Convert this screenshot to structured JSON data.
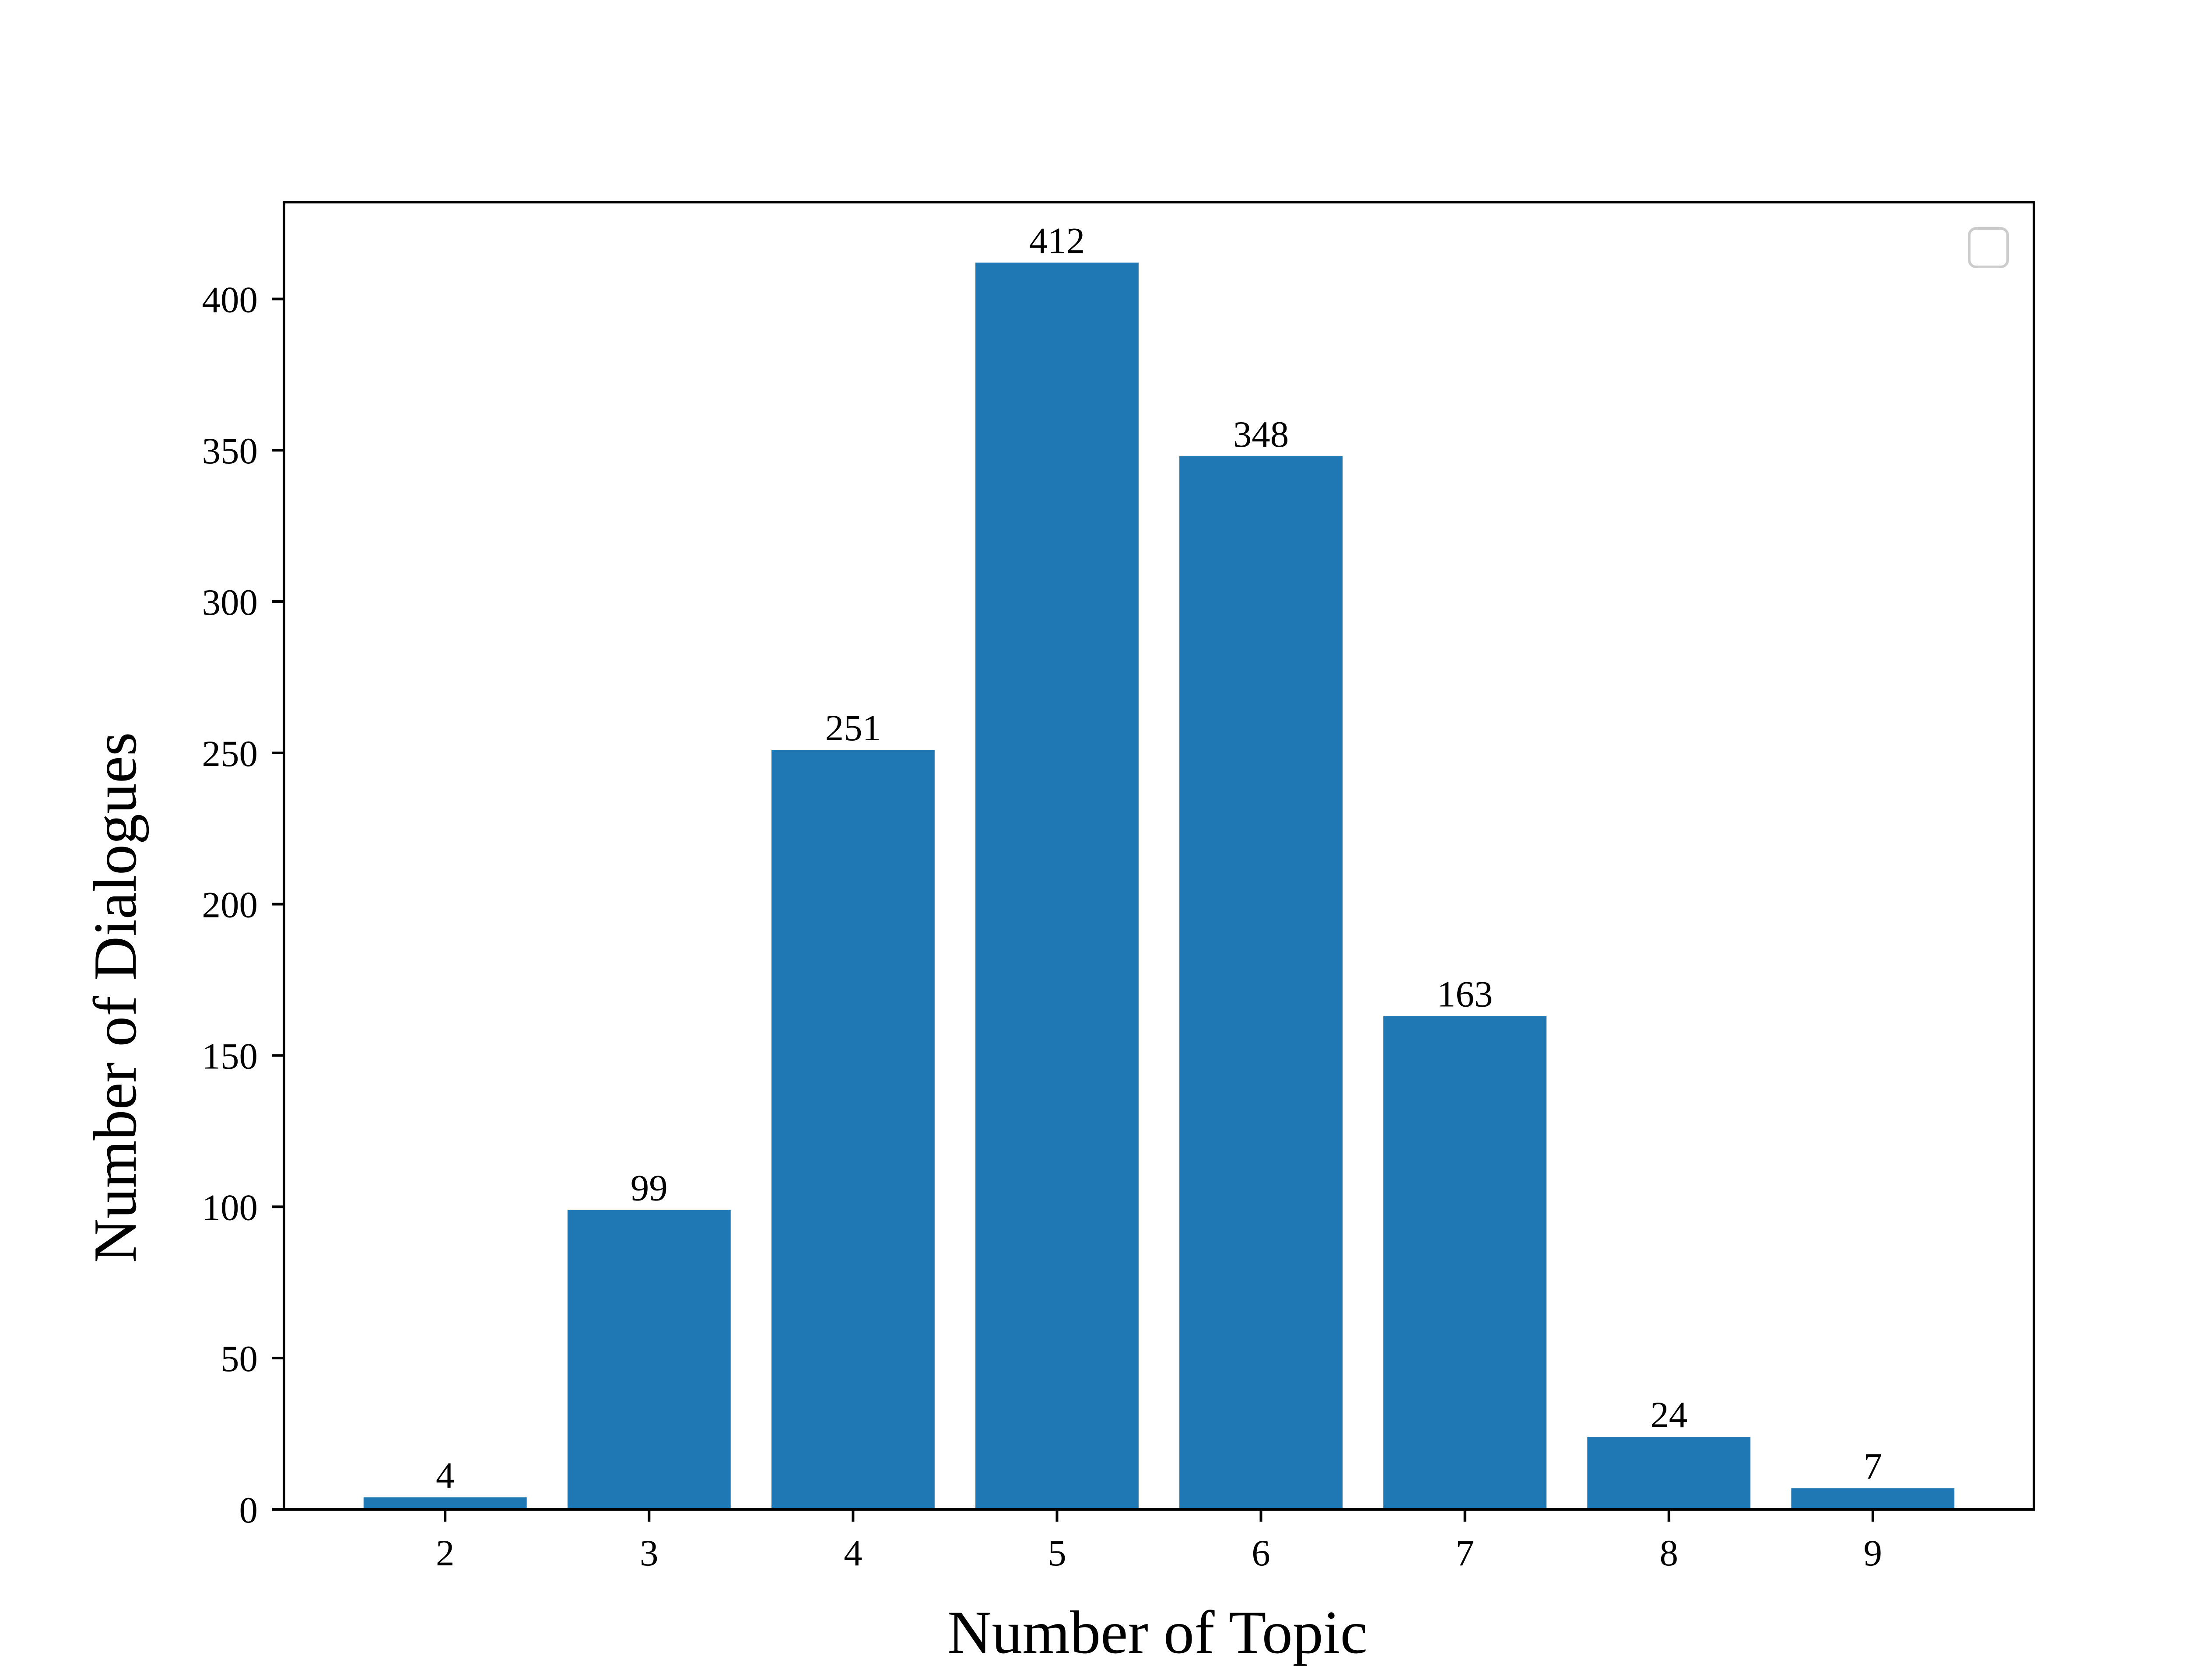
{
  "chart_data": {
    "type": "bar",
    "categories": [
      "2",
      "3",
      "4",
      "5",
      "6",
      "7",
      "8",
      "9"
    ],
    "values": [
      4,
      99,
      251,
      412,
      348,
      163,
      24,
      7
    ],
    "data_labels": [
      "4",
      "99",
      "251",
      "412",
      "348",
      "163",
      "24",
      "7"
    ],
    "xlabel": "Number of Topic",
    "ylabel": "Number of Dialogues",
    "ylim": [
      0,
      432
    ],
    "yticks": [
      0,
      50,
      100,
      150,
      200,
      250,
      300,
      350,
      400
    ],
    "ytick_labels": [
      "0",
      "50",
      "100",
      "150",
      "200",
      "250",
      "300",
      "350",
      "400"
    ],
    "grid": false,
    "legend": {
      "placement": "top-right",
      "entries": []
    },
    "colors": {
      "bar": "#1f77b4",
      "axis": "#000000",
      "legend_border": "#cccccc"
    }
  }
}
